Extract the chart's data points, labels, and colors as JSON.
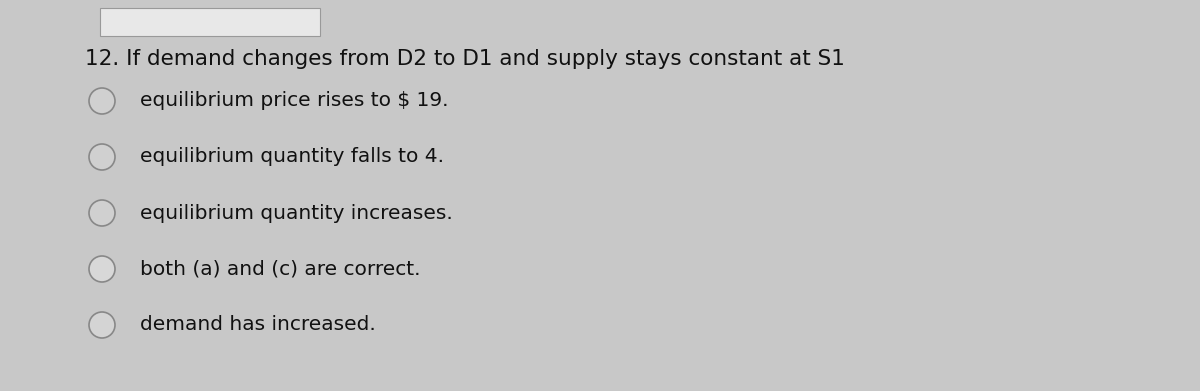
{
  "background_color": "#c8c8c8",
  "top_white_box_color": "#e0e0e0",
  "question": "12. If demand changes from D2 to D1 and supply stays constant at S1",
  "options": [
    "equilibrium price rises to $ 19.",
    "equilibrium quantity falls to 4.",
    "equilibrium quantity increases.",
    "both (a) and (c) are correct.",
    "demand has increased."
  ],
  "question_fontsize": 15.5,
  "option_fontsize": 14.5,
  "question_color": "#111111",
  "option_color": "#111111",
  "circle_edge_colors": [
    "#888888",
    "#888888",
    "#888888",
    "#888888",
    "#888888"
  ],
  "circle_face_colors": [
    "#d0d0d0",
    "#d0d0d0",
    "#d0d0d0",
    "#d8d8d8",
    "#d4d4d4"
  ]
}
